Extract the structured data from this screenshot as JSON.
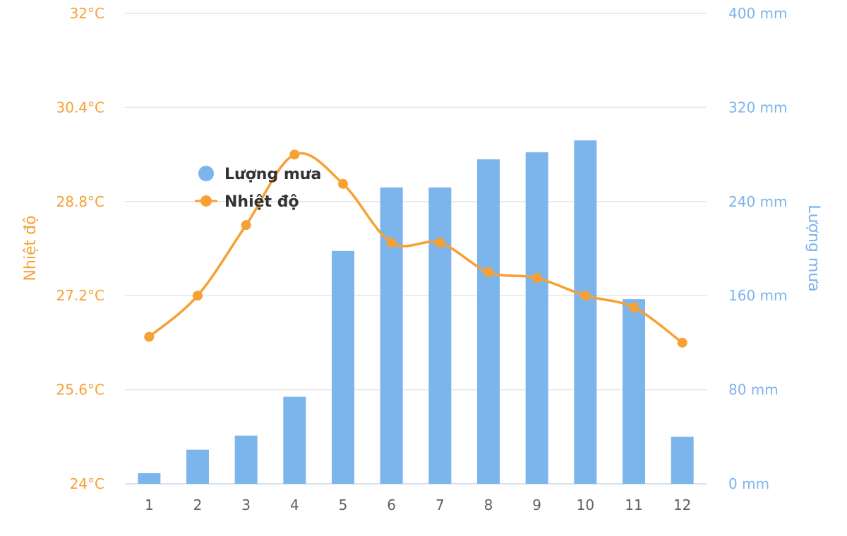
{
  "chart_data": {
    "type": "bar+line",
    "categories": [
      "1",
      "2",
      "3",
      "4",
      "5",
      "6",
      "7",
      "8",
      "9",
      "10",
      "11",
      "12"
    ],
    "series": [
      {
        "name": "Lượng mưa",
        "type": "bar",
        "axis": "right",
        "color": "#7cb4ec",
        "values": [
          9,
          29,
          41,
          74,
          198,
          252,
          252,
          276,
          282,
          292,
          157,
          40
        ]
      },
      {
        "name": "Nhiệt độ",
        "type": "line",
        "axis": "left",
        "color": "#f7a035",
        "values": [
          26.5,
          27.2,
          28.4,
          29.6,
          29.1,
          28.1,
          28.1,
          27.6,
          27.5,
          27.2,
          27.0,
          26.4
        ]
      }
    ],
    "yleft": {
      "label": "Nhiệt độ",
      "lim": [
        24,
        32
      ],
      "ticks": [
        "24°C",
        "25.6°C",
        "27.2°C",
        "28.8°C",
        "30.4°C",
        "32°C"
      ],
      "tick_values": [
        24,
        25.6,
        27.2,
        28.8,
        30.4,
        32
      ]
    },
    "yright": {
      "label": "Lượng mưa",
      "lim": [
        0,
        400
      ],
      "ticks": [
        "0 mm",
        "80 mm",
        "160 mm",
        "240 mm",
        "320 mm",
        "400 mm"
      ],
      "tick_values": [
        0,
        80,
        160,
        240,
        320,
        400
      ]
    },
    "grid": true,
    "legend": {
      "placement": "top-left",
      "items": [
        "Lượng mưa",
        "Nhiệt độ"
      ]
    }
  }
}
